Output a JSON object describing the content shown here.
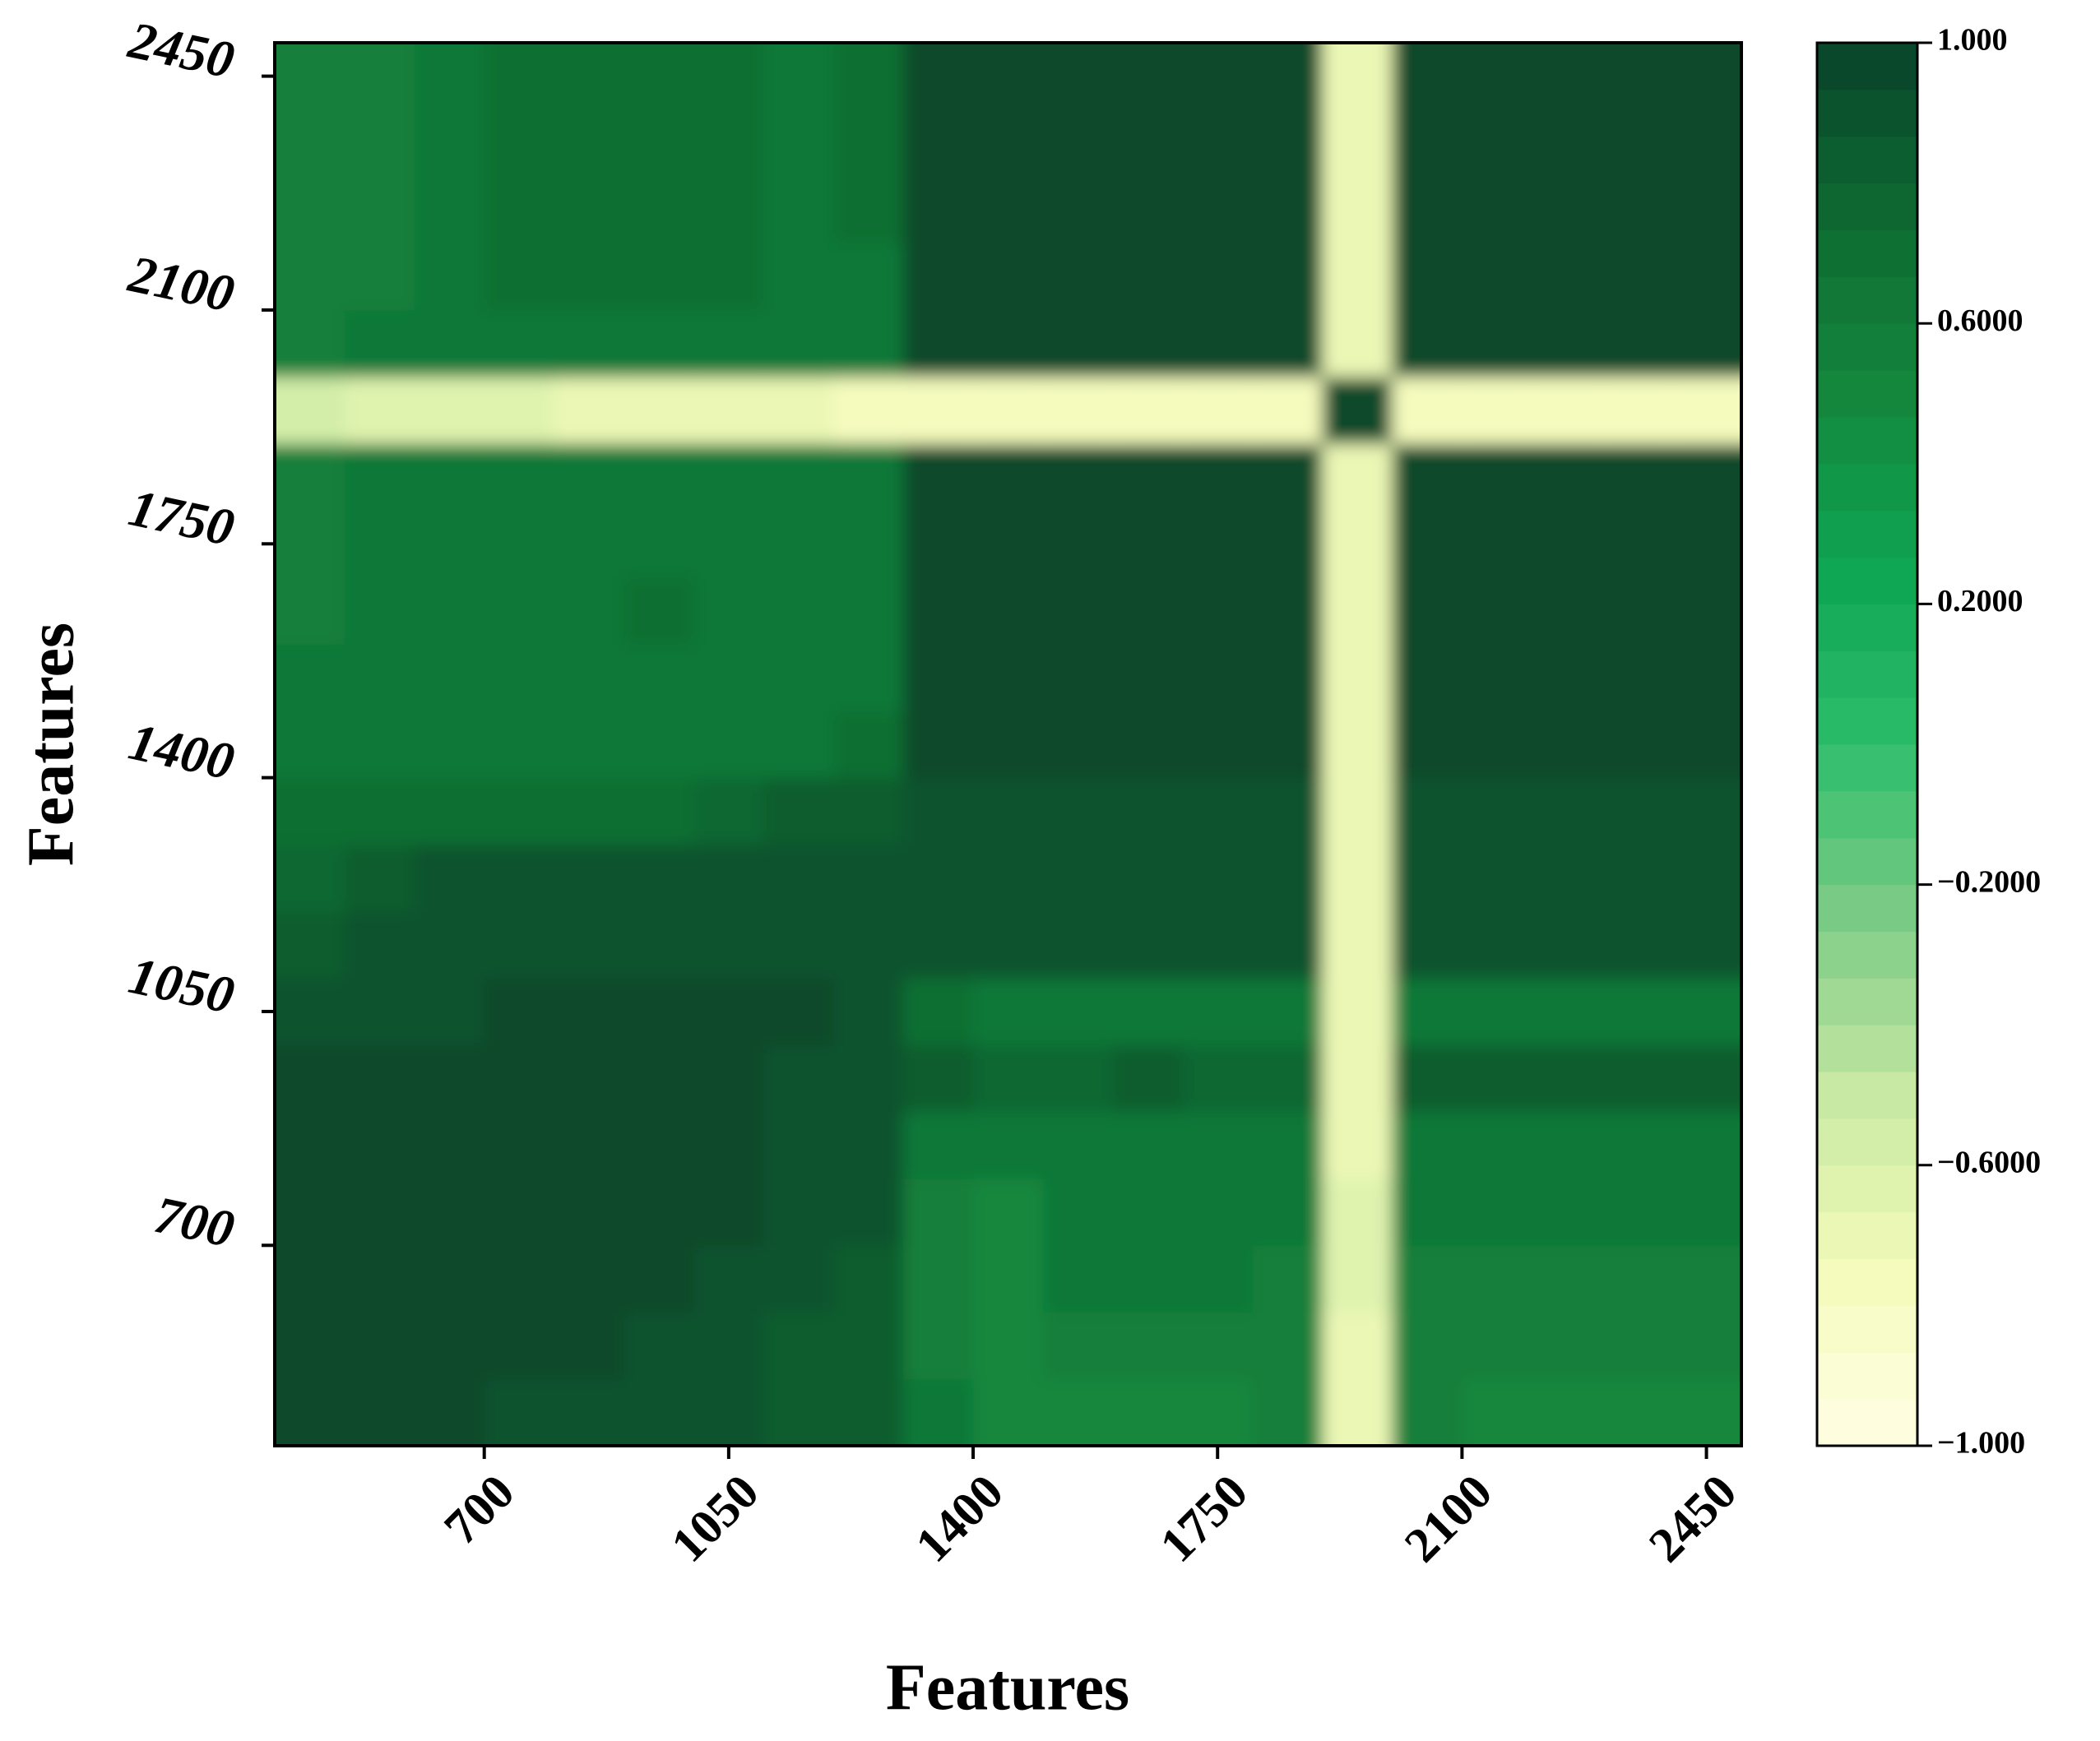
{
  "chart_data": {
    "type": "heatmap",
    "x_label": "Features",
    "y_label": "Features",
    "x": [
      450,
      550,
      650,
      750,
      850,
      950,
      1050,
      1150,
      1250,
      1350,
      1450,
      1550,
      1650,
      1750,
      1850,
      1950,
      2050,
      2150,
      2250,
      2350,
      2450
    ],
    "y": [
      450,
      550,
      650,
      750,
      850,
      950,
      1050,
      1150,
      1250,
      1350,
      1450,
      1550,
      1650,
      1750,
      1850,
      1950,
      2050,
      2150,
      2250,
      2350,
      2450
    ],
    "xlim": [
      400,
      2500
    ],
    "ylim": [
      400,
      2500
    ],
    "xticks": [
      700,
      1050,
      1400,
      1750,
      2100,
      2450
    ],
    "yticks": [
      700,
      1050,
      1400,
      1750,
      2100,
      2450
    ],
    "zlim": [
      -1,
      1
    ],
    "zticks": [
      {
        "value": 1,
        "label": "1.000"
      },
      {
        "value": 0.6,
        "label": "0.6000"
      },
      {
        "value": 0.2,
        "label": "0.2000"
      },
      {
        "value": -0.2,
        "label": "−0.2000"
      },
      {
        "value": -0.6,
        "label": "−0.6000"
      },
      {
        "value": -1,
        "label": "−1.000"
      }
    ],
    "colormap": [
      "#ffffe5",
      "#f4fbba",
      "#c7e9a3",
      "#7dcb86",
      "#2dbd6b",
      "#0ea552",
      "#14873d",
      "#0e6a31",
      "#08432a"
    ],
    "z": [
      [
        0.95,
        0.95,
        0.95,
        0.93,
        0.93,
        0.9,
        0.88,
        0.82,
        0.8,
        0.6,
        0.5,
        0.5,
        0.5,
        0.5,
        0.55,
        -0.7,
        0.55,
        0.5,
        0.5,
        0.5,
        0.5
      ],
      [
        0.95,
        0.95,
        0.95,
        0.95,
        0.95,
        0.93,
        0.9,
        0.85,
        0.82,
        0.55,
        0.52,
        0.55,
        0.55,
        0.55,
        0.55,
        -0.68,
        0.55,
        0.55,
        0.55,
        0.55,
        0.55
      ],
      [
        0.95,
        0.95,
        0.95,
        0.95,
        0.95,
        0.95,
        0.93,
        0.9,
        0.85,
        0.55,
        0.52,
        0.6,
        0.6,
        0.6,
        0.55,
        -0.66,
        0.55,
        0.55,
        0.55,
        0.55,
        0.55
      ],
      [
        0.95,
        0.95,
        0.95,
        0.95,
        0.95,
        0.95,
        0.95,
        0.9,
        0.88,
        0.58,
        0.52,
        0.6,
        0.6,
        0.6,
        0.6,
        -0.66,
        0.6,
        0.6,
        0.6,
        0.6,
        0.6
      ],
      [
        0.95,
        0.95,
        0.95,
        0.95,
        0.95,
        0.95,
        0.95,
        0.92,
        0.9,
        0.6,
        0.6,
        0.62,
        0.62,
        0.62,
        0.65,
        -0.68,
        0.65,
        0.65,
        0.65,
        0.65,
        0.65
      ],
      [
        0.95,
        0.95,
        0.95,
        0.95,
        0.95,
        0.95,
        0.95,
        0.93,
        0.92,
        0.8,
        0.75,
        0.75,
        0.85,
        0.75,
        0.75,
        -0.68,
        0.8,
        0.8,
        0.8,
        0.8,
        0.8
      ],
      [
        0.92,
        0.9,
        0.93,
        0.95,
        0.95,
        0.95,
        0.95,
        0.95,
        0.93,
        0.7,
        0.62,
        0.62,
        0.65,
        0.65,
        0.65,
        -0.68,
        0.65,
        0.65,
        0.65,
        0.65,
        0.65
      ],
      [
        0.85,
        0.88,
        0.9,
        0.92,
        0.92,
        0.92,
        0.92,
        0.92,
        0.92,
        0.9,
        0.9,
        0.9,
        0.9,
        0.9,
        0.9,
        -0.68,
        0.92,
        0.92,
        0.92,
        0.92,
        0.92
      ],
      [
        0.78,
        0.8,
        0.88,
        0.9,
        0.9,
        0.9,
        0.9,
        0.9,
        0.9,
        0.9,
        0.9,
        0.9,
        0.9,
        0.9,
        0.9,
        -0.68,
        0.9,
        0.9,
        0.88,
        0.88,
        0.88
      ],
      [
        0.7,
        0.7,
        0.72,
        0.72,
        0.72,
        0.72,
        0.78,
        0.85,
        0.85,
        0.9,
        0.92,
        0.92,
        0.92,
        0.92,
        0.92,
        -0.68,
        0.92,
        0.92,
        0.92,
        0.92,
        0.92
      ],
      [
        0.62,
        0.62,
        0.6,
        0.62,
        0.62,
        0.6,
        0.62,
        0.65,
        0.72,
        0.97,
        0.97,
        0.97,
        0.97,
        0.97,
        0.97,
        -0.7,
        0.97,
        0.97,
        0.97,
        0.97,
        0.97
      ],
      [
        0.6,
        0.62,
        0.64,
        0.64,
        0.62,
        0.6,
        0.62,
        0.6,
        0.65,
        0.97,
        0.97,
        0.97,
        0.97,
        0.97,
        0.97,
        -0.7,
        0.97,
        0.97,
        0.97,
        0.97,
        0.97
      ],
      [
        0.58,
        0.62,
        0.66,
        0.66,
        0.64,
        0.7,
        0.62,
        0.6,
        0.65,
        0.97,
        0.97,
        0.97,
        0.97,
        0.97,
        0.97,
        -0.7,
        0.97,
        0.97,
        0.97,
        0.97,
        0.97
      ],
      [
        0.58,
        0.62,
        0.66,
        0.66,
        0.66,
        0.64,
        0.64,
        0.62,
        0.66,
        0.97,
        0.97,
        0.97,
        0.97,
        0.97,
        0.97,
        -0.7,
        0.97,
        0.97,
        0.97,
        0.97,
        0.97
      ],
      [
        0.58,
        0.62,
        0.64,
        0.64,
        0.66,
        0.66,
        0.64,
        0.62,
        0.66,
        0.97,
        0.97,
        0.97,
        0.97,
        0.97,
        0.97,
        -0.7,
        0.97,
        0.97,
        0.97,
        0.97,
        0.97
      ],
      [
        -0.6,
        -0.62,
        -0.64,
        -0.66,
        -0.68,
        -0.7,
        -0.72,
        -0.72,
        -0.74,
        -0.75,
        -0.75,
        -0.75,
        -0.75,
        -0.75,
        -0.75,
        1.0,
        -0.75,
        -0.75,
        -0.75,
        -0.75,
        -0.75
      ],
      [
        0.55,
        0.6,
        0.64,
        0.66,
        0.66,
        0.66,
        0.66,
        0.64,
        0.66,
        0.97,
        0.97,
        0.97,
        0.97,
        0.97,
        0.97,
        -0.72,
        0.97,
        0.97,
        0.97,
        0.97,
        0.97
      ],
      [
        0.55,
        0.58,
        0.62,
        0.68,
        0.68,
        0.68,
        0.68,
        0.64,
        0.66,
        0.97,
        0.97,
        0.97,
        0.97,
        0.97,
        0.97,
        -0.72,
        0.97,
        0.97,
        0.97,
        0.97,
        0.97
      ],
      [
        0.55,
        0.58,
        0.62,
        0.68,
        0.68,
        0.68,
        0.68,
        0.64,
        0.68,
        0.97,
        0.97,
        0.97,
        0.97,
        0.97,
        0.97,
        -0.72,
        0.97,
        0.97,
        0.97,
        0.97,
        0.97
      ],
      [
        0.55,
        0.58,
        0.62,
        0.7,
        0.7,
        0.7,
        0.68,
        0.64,
        0.68,
        0.97,
        0.97,
        0.97,
        0.97,
        0.97,
        0.97,
        -0.72,
        0.97,
        0.97,
        0.97,
        0.97,
        0.97
      ],
      [
        0.55,
        0.58,
        0.62,
        0.7,
        0.7,
        0.7,
        0.68,
        0.64,
        0.7,
        0.97,
        0.97,
        0.97,
        0.97,
        0.97,
        0.97,
        -0.72,
        0.97,
        0.97,
        0.97,
        0.97,
        0.97
      ]
    ]
  }
}
